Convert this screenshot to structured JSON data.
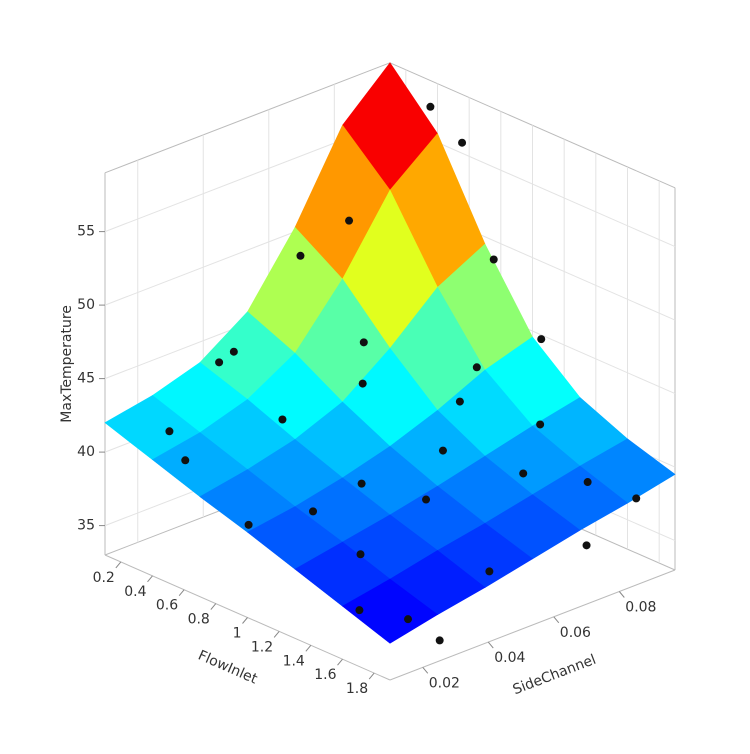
{
  "chart_data": {
    "type": "surface3d",
    "x_label": "FlowInlet",
    "y_label": "SideChannel",
    "z_label": "MaxTemperature",
    "xlim": [
      0.1,
      1.9
    ],
    "ylim": [
      0.01,
      0.097
    ],
    "zlim": [
      33,
      59
    ],
    "xticks": [
      0.2,
      0.4,
      0.6,
      0.8,
      1,
      1.2,
      1.4,
      1.6,
      1.8
    ],
    "yticks": [
      0.02,
      0.04,
      0.06,
      0.08
    ],
    "zticks": [
      35,
      40,
      45,
      50,
      55
    ],
    "grid": true,
    "surface": {
      "x": [
        0.1,
        0.4,
        0.7,
        1.0,
        1.3,
        1.6,
        1.9
      ],
      "y": [
        0.01,
        0.0245,
        0.039,
        0.0535,
        0.068,
        0.0825,
        0.097
      ],
      "z": [
        [
          42,
          42.6,
          43.6,
          45.8,
          50.3,
          56,
          59
        ],
        [
          40.9,
          41.5,
          42.5,
          44.4,
          48.2,
          53,
          55.6
        ],
        [
          39.8,
          40.4,
          41.2,
          42.5,
          44.9,
          47.8,
          49.5
        ],
        [
          38.8,
          39.3,
          40.0,
          40.9,
          42.1,
          43.6,
          44.6
        ],
        [
          37.7,
          38.3,
          38.9,
          39.6,
          40.4,
          41.2,
          41.9
        ],
        [
          36.6,
          37.2,
          37.9,
          38.5,
          39.2,
          39.9,
          40.5
        ],
        [
          35.5,
          36.2,
          36.8,
          37.5,
          38.2,
          38.8,
          39.5
        ]
      ]
    },
    "points": {
      "color": "#111111",
      "x": [
        0.3,
        0.5,
        0.4,
        0.7,
        0.5,
        0.9,
        1.1,
        1.3,
        1.5,
        0.8,
        1.2,
        1.5,
        1.7,
        1.8,
        1.0,
        0.6,
        0.2,
        1.6,
        1.4,
        0.3,
        1.0,
        0.7,
        1.2,
        1.7,
        1.9,
        0.4,
        1.1,
        0.9,
        1.3,
        1.8
      ],
      "y": [
        0.02,
        0.03,
        0.07,
        0.09,
        0.09,
        0.05,
        0.04,
        0.03,
        0.02,
        0.02,
        0.06,
        0.07,
        0.05,
        0.09,
        0.08,
        0.04,
        0.04,
        0.03,
        0.08,
        0.06,
        0.03,
        0.06,
        0.09,
        0.08,
        0.07,
        0.02,
        0.07,
        0.09,
        0.05,
        0.03
      ],
      "z": [
        41.5,
        47,
        52,
        57,
        58.5,
        45,
        40,
        37,
        35,
        37.5,
        41,
        40,
        36,
        38,
        44,
        42,
        44,
        34,
        42,
        50,
        38.5,
        46,
        46,
        39.5,
        37,
        40,
        43,
        50,
        39,
        33.5
      ]
    }
  }
}
